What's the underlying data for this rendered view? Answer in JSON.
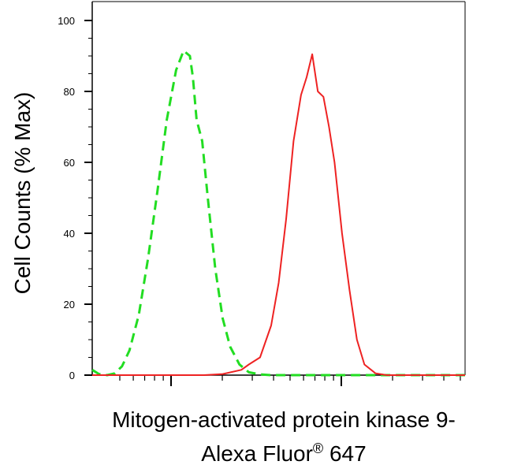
{
  "chart_data": {
    "type": "line",
    "title": "",
    "ylabel": "Cell Counts (% Max)",
    "xlabel_line1": "Mitogen-activated protein kinase 9-",
    "xlabel_line2_main": "Alexa Fluor",
    "xlabel_line2_sup": "®",
    "xlabel_line2_end": " 647",
    "x_scale": "log",
    "xlim": [
      0,
      1
    ],
    "ylim": [
      0,
      100
    ],
    "y_ticks": [
      0,
      20,
      40,
      60,
      80,
      100
    ],
    "y_tick_labels": [
      "0",
      "20",
      "40",
      "60",
      "80",
      "100"
    ],
    "grid": false,
    "legend": "none",
    "series": [
      {
        "color": "#22dd22",
        "style": "dashed",
        "x": [
          0.0,
          0.018,
          0.04,
          0.06,
          0.08,
          0.1,
          0.125,
          0.15,
          0.175,
          0.2,
          0.225,
          0.245,
          0.262,
          0.27,
          0.28,
          0.295,
          0.31,
          0.33,
          0.35,
          0.37,
          0.395,
          0.42,
          0.45,
          0.48,
          0.52,
          0.6,
          0.7,
          0.8,
          0.9,
          1.0
        ],
        "y": [
          1.5,
          0.3,
          0.0,
          0.5,
          2.5,
          7.0,
          17.0,
          33.0,
          52.0,
          72.0,
          86.0,
          91.5,
          90.0,
          84.0,
          72.0,
          66.0,
          50.0,
          30.0,
          16.0,
          8.0,
          3.0,
          0.8,
          0.2,
          0.0,
          0.0,
          0.0,
          0.0,
          0.0,
          0.0,
          0.0
        ]
      },
      {
        "color": "#ee2222",
        "style": "solid",
        "x": [
          0.0,
          0.3,
          0.35,
          0.4,
          0.42,
          0.45,
          0.48,
          0.5,
          0.52,
          0.54,
          0.56,
          0.575,
          0.59,
          0.605,
          0.62,
          0.635,
          0.65,
          0.67,
          0.69,
          0.71,
          0.73,
          0.76,
          0.79,
          0.83,
          0.9,
          1.0
        ],
        "y": [
          0.0,
          0.0,
          0.3,
          1.5,
          3.0,
          5.0,
          14.0,
          26.0,
          44.0,
          66.0,
          79.0,
          84.0,
          90.5,
          80.0,
          78.5,
          70.0,
          60.0,
          40.0,
          24.0,
          10.0,
          3.0,
          0.5,
          0.0,
          0.0,
          0.0,
          0.0
        ]
      }
    ]
  }
}
